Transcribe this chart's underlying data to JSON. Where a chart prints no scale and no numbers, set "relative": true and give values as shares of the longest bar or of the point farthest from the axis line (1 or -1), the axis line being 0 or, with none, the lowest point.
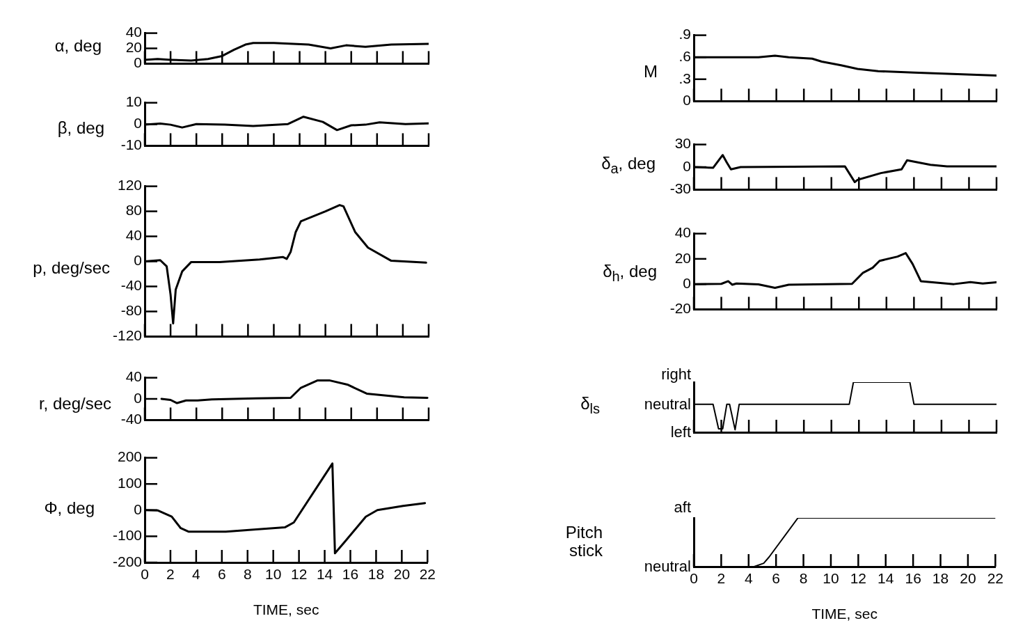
{
  "chart_data": [
    {
      "type": "line",
      "ylabel": "α, deg",
      "xlim": [
        0,
        22
      ],
      "xticks": [
        0,
        2,
        4,
        6,
        8,
        10,
        12,
        14,
        16,
        18,
        20,
        22
      ],
      "ylim": [
        0,
        40
      ],
      "yticks": [
        0,
        20,
        40
      ],
      "tick_labels": "y",
      "x": [
        0,
        1,
        2,
        3.6,
        4.9,
        6,
        6.9,
        7.8,
        8.4,
        10,
        12.7,
        14.4,
        15.6,
        17.1,
        19.1,
        22
      ],
      "series": [
        {
          "color": "#000000",
          "values": [
            5,
            6,
            5,
            4,
            6,
            10,
            18,
            25,
            27,
            27,
            25,
            20,
            24,
            22,
            25,
            26
          ]
        }
      ]
    },
    {
      "type": "line",
      "ylabel": "β, deg",
      "xlim": [
        0,
        22
      ],
      "xticks": [
        0,
        2,
        4,
        6,
        8,
        10,
        12,
        14,
        16,
        18,
        20,
        22
      ],
      "ylim": [
        -10,
        10
      ],
      "yticks": [
        -10,
        0,
        10
      ],
      "tick_labels": "y",
      "x": [
        0,
        1.2,
        2,
        2.9,
        4,
        6.2,
        8.4,
        11.1,
        12.3,
        13.8,
        14.9,
        16,
        17.1,
        18.2,
        20.2,
        22
      ],
      "series": [
        {
          "color": "#000000",
          "values": [
            -0.2,
            0.3,
            -0.2,
            -1.5,
            0.1,
            -0.2,
            -0.8,
            0.1,
            3.5,
            1.1,
            -2.7,
            -0.5,
            -0.2,
            0.9,
            0.1,
            0.4
          ]
        }
      ]
    },
    {
      "type": "line",
      "ylabel": "p, deg/sec",
      "xlim": [
        0,
        22
      ],
      "xticks": [
        0,
        2,
        4,
        6,
        8,
        10,
        12,
        14,
        16,
        18,
        20,
        22
      ],
      "ylim": [
        -120,
        120
      ],
      "yticks": [
        -120,
        -80,
        -40,
        0,
        40,
        80,
        120
      ],
      "tick_labels": "y",
      "x": [
        0,
        1.2,
        1.7,
        2,
        2.2,
        2.4,
        2.9,
        3.6,
        5.8,
        8.9,
        10.7,
        11,
        11.3,
        11.7,
        12.1,
        14,
        15.1,
        15.4,
        16.3,
        17.3,
        19.1,
        21.8
      ],
      "series": [
        {
          "color": "#000000",
          "values": [
            0,
            2,
            -8,
            -53,
            -99,
            -45,
            -16,
            -1,
            -1,
            3,
            7,
            4,
            15,
            47,
            64,
            80,
            90,
            88,
            47,
            22,
            1,
            -2
          ]
        }
      ]
    },
    {
      "type": "line",
      "ylabel": "r, deg/sec",
      "xlim": [
        0,
        22
      ],
      "xticks": [
        0,
        2,
        4,
        6,
        8,
        10,
        12,
        14,
        16,
        18,
        20,
        22
      ],
      "ylim": [
        -40,
        40
      ],
      "yticks": [
        -40,
        0,
        40
      ],
      "tick_labels": "y",
      "x": [
        1.3,
        2,
        2.5,
        3.2,
        4.1,
        5.2,
        8.6,
        11.3,
        12.1,
        13.4,
        14.3,
        15.7,
        17.2,
        20.1,
        21.9
      ],
      "series": [
        {
          "color": "#000000",
          "values": [
            0,
            -2,
            -8,
            -3,
            -3,
            -1,
            1,
            2,
            21,
            35,
            35,
            27,
            10,
            3,
            2
          ]
        }
      ]
    },
    {
      "type": "line",
      "ylabel": "Φ, deg",
      "xlabel": "TIME, sec",
      "xlim": [
        0,
        22
      ],
      "xticks": [
        0,
        2,
        4,
        6,
        8,
        10,
        12,
        14,
        16,
        18,
        20,
        22
      ],
      "ylim": [
        -200,
        200
      ],
      "yticks": [
        -200,
        -100,
        0,
        100,
        200
      ],
      "x": [
        0,
        1,
        2.1,
        2.8,
        3.4,
        6.3,
        10.9,
        11.6,
        14.6,
        14.8,
        15.6,
        17.2,
        18.1,
        20.1,
        21.8
      ],
      "series": [
        {
          "color": "#000000",
          "values": [
            0,
            -1,
            -25,
            -69,
            -82,
            -82,
            -66,
            -47,
            178,
            -165,
            -119,
            -25,
            0,
            16,
            27
          ]
        }
      ]
    },
    {
      "type": "line",
      "ylabel": "M",
      "xlim": [
        0,
        22
      ],
      "xticks": [
        0,
        2,
        4,
        6,
        8,
        10,
        12,
        14,
        16,
        18,
        20,
        22
      ],
      "ylim": [
        0,
        0.9
      ],
      "yticks": [
        0,
        {
          "value": 0.3,
          "label": ".3"
        },
        {
          "value": 0.6,
          "label": ".6"
        },
        {
          "value": 0.9,
          "label": ".9"
        }
      ],
      "tick_labels": "y",
      "x": [
        0,
        4.7,
        5.9,
        6.9,
        8.6,
        9.3,
        10.7,
        11.9,
        13.4,
        16,
        22
      ],
      "series": [
        {
          "color": "#000000",
          "values": [
            0.6,
            0.6,
            0.62,
            0.6,
            0.58,
            0.54,
            0.49,
            0.44,
            0.41,
            0.39,
            0.35
          ]
        }
      ]
    },
    {
      "type": "line",
      "ylabel": "δ$_{a}$, deg",
      "xlim": [
        0,
        22
      ],
      "xticks": [
        0,
        2,
        4,
        6,
        8,
        10,
        12,
        14,
        16,
        18,
        20,
        22
      ],
      "ylim": [
        -30,
        30
      ],
      "yticks": [
        -30,
        0,
        30
      ],
      "tick_labels": "y",
      "x": [
        0,
        1.4,
        2.1,
        2.4,
        2.7,
        3.4,
        10.98,
        11.7,
        11.9,
        13.6,
        15.1,
        15.5,
        17.2,
        18.4,
        22
      ],
      "series": [
        {
          "color": "#000000",
          "values": [
            0,
            -1,
            16,
            6,
            -3,
            0,
            1,
            -20,
            -17,
            -8,
            -3,
            9,
            3,
            1,
            1
          ]
        }
      ]
    },
    {
      "type": "line",
      "ylabel": "δ$_{h}$, deg",
      "xlim": [
        0,
        22
      ],
      "xticks": [
        0,
        2,
        4,
        6,
        8,
        10,
        12,
        14,
        16,
        18,
        20,
        22
      ],
      "ylim": [
        -20,
        40
      ],
      "yticks": [
        -20,
        0,
        20,
        40
      ],
      "tick_labels": "y",
      "x": [
        0,
        2,
        2.5,
        2.8,
        3.1,
        4.7,
        5.9,
        6.9,
        11.5,
        12.3,
        13,
        13.5,
        14.8,
        15.4,
        15.9,
        16.5,
        18.9,
        20.1,
        21,
        22
      ],
      "series": [
        {
          "color": "#000000",
          "values": [
            0,
            0.2,
            2.3,
            -0.5,
            0.5,
            -0.2,
            -3,
            -0.5,
            0.2,
            9,
            13,
            18.4,
            21.8,
            24.6,
            16,
            2.3,
            0,
            1.6,
            0.5,
            1.4
          ]
        }
      ]
    },
    {
      "type": "line",
      "ylabel": "δ$_{ls}$",
      "relative": true,
      "annotations": [
        "right",
        "neutral",
        "left"
      ],
      "xlim": [
        0,
        22
      ],
      "xticks": [
        0,
        2,
        4,
        6,
        8,
        10,
        12,
        14,
        16,
        18,
        20,
        22
      ],
      "tick_labels": false,
      "x": [
        0,
        1.4,
        1.8,
        2.1,
        2.4,
        2.6,
        3,
        3.3,
        11.3,
        11.6,
        15.7,
        16,
        22
      ],
      "series": [
        {
          "color": "#000000",
          "values": [
            0.56,
            0.56,
            0.07,
            0.07,
            0.56,
            0.56,
            0.05,
            0.56,
            0.56,
            1,
            1,
            0.56,
            0.56
          ]
        }
      ]
    },
    {
      "type": "line",
      "ylabel": "Pitch stick",
      "relative": true,
      "annotations": [
        "aft",
        "neutral"
      ],
      "xlabel": "TIME, sec",
      "xlim": [
        0,
        22
      ],
      "xticks": [
        0,
        2,
        4,
        6,
        8,
        10,
        12,
        14,
        16,
        18,
        20,
        22
      ],
      "tick_labels": "x",
      "x": [
        0,
        4.4,
        5.1,
        5.5,
        7.6,
        22
      ],
      "series": [
        {
          "color": "#000000",
          "values": [
            0,
            0,
            0.07,
            0.2,
            1,
            1
          ]
        }
      ]
    }
  ]
}
